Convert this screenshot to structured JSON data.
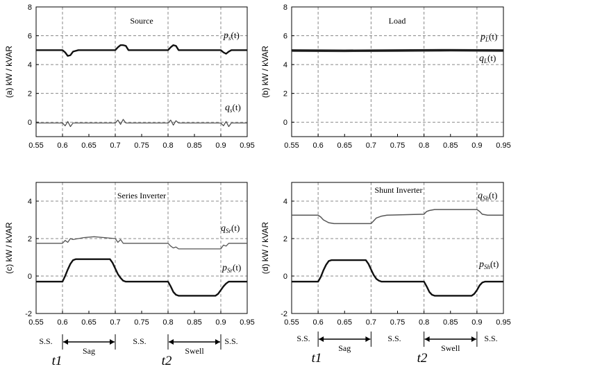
{
  "chart_data": [
    {
      "type": "line",
      "panel_label": "(a) kW / kVAR",
      "title": "Source",
      "xlim": [
        0.55,
        0.95
      ],
      "ylim": [
        -1,
        8
      ],
      "xticks": [
        "0.55",
        "0.6",
        "0.65",
        "0.7",
        "0.75",
        "0.8",
        "0.85",
        "0.9",
        "0.95"
      ],
      "yticks": [
        "0",
        "2",
        "4",
        "6",
        "8"
      ],
      "series": [
        {
          "name": "p",
          "sub": "s",
          "suffix": "(t)",
          "x": [
            0.55,
            0.6,
            0.605,
            0.61,
            0.615,
            0.62,
            0.63,
            0.7,
            0.705,
            0.71,
            0.715,
            0.72,
            0.725,
            0.73,
            0.8,
            0.805,
            0.81,
            0.815,
            0.82,
            0.83,
            0.9,
            0.905,
            0.91,
            0.915,
            0.92,
            0.95
          ],
          "y": [
            5.0,
            5.0,
            4.85,
            4.6,
            4.65,
            4.9,
            5.0,
            5.0,
            5.2,
            5.35,
            5.35,
            5.3,
            5.0,
            5.0,
            5.0,
            5.2,
            5.35,
            5.3,
            5.0,
            5.0,
            5.0,
            4.85,
            4.75,
            4.9,
            5.0,
            5.0
          ]
        },
        {
          "name": "q",
          "sub": "s",
          "suffix": "(t)",
          "x": [
            0.55,
            0.6,
            0.605,
            0.61,
            0.615,
            0.62,
            0.7,
            0.705,
            0.71,
            0.715,
            0.72,
            0.8,
            0.805,
            0.81,
            0.815,
            0.82,
            0.9,
            0.905,
            0.91,
            0.915,
            0.92,
            0.95
          ],
          "y": [
            -0.05,
            -0.05,
            -0.25,
            0.05,
            -0.3,
            -0.05,
            -0.05,
            0.15,
            -0.15,
            0.2,
            -0.05,
            -0.05,
            0.15,
            -0.2,
            0.1,
            -0.05,
            -0.05,
            -0.25,
            0.05,
            -0.3,
            -0.05,
            -0.05
          ]
        }
      ]
    },
    {
      "type": "line",
      "panel_label": "(b) kW / kVAR",
      "title": "Load",
      "xlim": [
        0.55,
        0.95
      ],
      "ylim": [
        -1,
        8
      ],
      "xticks": [
        "0.55",
        "0.6",
        "0.65",
        "0.7",
        "0.75",
        "0.8",
        "0.85",
        "0.9",
        "0.95"
      ],
      "yticks": [
        "0",
        "2",
        "4",
        "6",
        "8"
      ],
      "series": [
        {
          "name": "p",
          "sub": "L",
          "suffix": "(t)",
          "x": [
            0.55,
            0.65,
            0.75,
            0.85,
            0.95
          ],
          "y": [
            5.0,
            4.98,
            5.0,
            5.02,
            5.0
          ]
        },
        {
          "name": "q",
          "sub": "L",
          "suffix": "(t)",
          "x": [
            0.55,
            0.65,
            0.75,
            0.85,
            0.95
          ],
          "y": [
            4.92,
            4.9,
            4.92,
            4.94,
            4.92
          ]
        }
      ]
    },
    {
      "type": "line",
      "panel_label": "(c) kW / kVAR",
      "title": "Series Inverter",
      "xlim": [
        0.55,
        0.95
      ],
      "ylim": [
        -2,
        5
      ],
      "xticks": [
        "0.55",
        "0.6",
        "0.65",
        "0.7",
        "0.75",
        "0.8",
        "0.85",
        "0.9",
        "0.95"
      ],
      "yticks": [
        "-2",
        "0",
        "2",
        "4"
      ],
      "series": [
        {
          "name": "q",
          "sub": "Sr",
          "suffix": "(t)",
          "x": [
            0.55,
            0.6,
            0.605,
            0.61,
            0.615,
            0.62,
            0.64,
            0.66,
            0.7,
            0.705,
            0.71,
            0.715,
            0.72,
            0.8,
            0.805,
            0.81,
            0.815,
            0.82,
            0.9,
            0.905,
            0.91,
            0.915,
            0.92,
            0.95
          ],
          "y": [
            1.75,
            1.75,
            1.9,
            1.8,
            2.0,
            1.95,
            2.05,
            2.1,
            2.0,
            1.8,
            1.95,
            1.75,
            1.75,
            1.75,
            1.6,
            1.5,
            1.55,
            1.45,
            1.45,
            1.65,
            1.6,
            1.75,
            1.75,
            1.75
          ]
        },
        {
          "name": "p",
          "sub": "Sr",
          "suffix": "(t)",
          "x": [
            0.55,
            0.6,
            0.605,
            0.61,
            0.615,
            0.62,
            0.625,
            0.69,
            0.695,
            0.7,
            0.705,
            0.71,
            0.715,
            0.72,
            0.8,
            0.805,
            0.81,
            0.815,
            0.82,
            0.825,
            0.89,
            0.895,
            0.9,
            0.905,
            0.91,
            0.915,
            0.92,
            0.95
          ],
          "y": [
            -0.3,
            -0.3,
            0.0,
            0.35,
            0.65,
            0.85,
            0.9,
            0.9,
            0.7,
            0.4,
            0.1,
            -0.1,
            -0.25,
            -0.3,
            -0.3,
            -0.55,
            -0.85,
            -1.0,
            -1.05,
            -1.05,
            -1.05,
            -0.95,
            -0.75,
            -0.55,
            -0.4,
            -0.3,
            -0.3,
            -0.3
          ]
        }
      ]
    },
    {
      "type": "line",
      "panel_label": "(d) kW / kVAR",
      "title": "Shunt Inverter",
      "xlim": [
        0.55,
        0.95
      ],
      "ylim": [
        -2,
        5
      ],
      "xticks": [
        "0.55",
        "0.6",
        "0.65",
        "0.7",
        "0.75",
        "0.8",
        "0.85",
        "0.9",
        "0.95"
      ],
      "yticks": [
        "-2",
        "0",
        "2",
        "4"
      ],
      "series": [
        {
          "name": "q",
          "sub": "Sh",
          "suffix": "(t)",
          "x": [
            0.55,
            0.6,
            0.605,
            0.61,
            0.62,
            0.63,
            0.7,
            0.705,
            0.71,
            0.72,
            0.73,
            0.8,
            0.805,
            0.81,
            0.82,
            0.83,
            0.9,
            0.905,
            0.91,
            0.92,
            0.95
          ],
          "y": [
            3.25,
            3.25,
            3.15,
            3.0,
            2.85,
            2.8,
            2.8,
            2.95,
            3.1,
            3.2,
            3.25,
            3.3,
            3.45,
            3.5,
            3.55,
            3.55,
            3.55,
            3.45,
            3.3,
            3.25,
            3.25
          ]
        },
        {
          "name": "p",
          "sub": "Sh",
          "suffix": "(t)",
          "x": [
            0.55,
            0.6,
            0.605,
            0.61,
            0.615,
            0.62,
            0.625,
            0.69,
            0.695,
            0.7,
            0.705,
            0.71,
            0.715,
            0.72,
            0.8,
            0.805,
            0.81,
            0.815,
            0.82,
            0.825,
            0.89,
            0.895,
            0.9,
            0.905,
            0.91,
            0.915,
            0.92,
            0.95
          ],
          "y": [
            -0.3,
            -0.3,
            -0.05,
            0.3,
            0.6,
            0.8,
            0.85,
            0.85,
            0.65,
            0.35,
            0.05,
            -0.15,
            -0.25,
            -0.3,
            -0.3,
            -0.55,
            -0.85,
            -1.0,
            -1.05,
            -1.05,
            -1.05,
            -0.95,
            -0.75,
            -0.5,
            -0.35,
            -0.3,
            -0.3,
            -0.3
          ]
        }
      ]
    }
  ],
  "annotations": {
    "ss": "S.S.",
    "sag": "Sag",
    "swell": "Swell",
    "t1": "t1",
    "t2": "t2"
  },
  "vlines": [
    0.6,
    0.7,
    0.8,
    0.9
  ]
}
